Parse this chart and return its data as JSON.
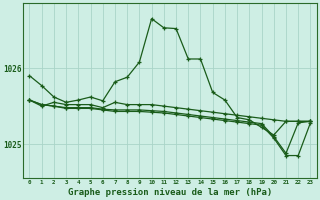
{
  "title": "Graphe pression niveau de la mer (hPa)",
  "background_color": "#ceeee4",
  "grid_color": "#aad4c8",
  "line_color": "#1a5c1a",
  "xlim": [
    -0.5,
    23.5
  ],
  "ylim": [
    1024.55,
    1026.85
  ],
  "yticks": [
    1025,
    1026
  ],
  "linewidth": 0.9,
  "markersize": 3.5,
  "xlabel_fontsize": 6.5,
  "xtick_fontsize": 4.2,
  "ytick_fontsize": 5.5,
  "main_y": [
    1025.9,
    1025.77,
    1025.62,
    1025.55,
    1025.58,
    1025.62,
    1025.57,
    1025.82,
    1025.88,
    1026.08,
    1026.65,
    1026.53,
    1026.52,
    1026.12,
    1026.12,
    1025.68,
    1025.58,
    1025.35,
    1025.32,
    1025.22,
    1025.12,
    1025.3,
    1025.3,
    1025.3
  ],
  "line2_y": [
    1025.58,
    1025.5,
    1025.55,
    1025.52,
    1025.52,
    1025.52,
    1025.48,
    1025.55,
    1025.52,
    1025.52,
    1025.52,
    1025.5,
    1025.48,
    1025.46,
    1025.44,
    1025.42,
    1025.4,
    1025.38,
    1025.36,
    1025.34,
    1025.32,
    1025.3,
    1025.3,
    1025.3
  ],
  "line3_y": [
    1025.58,
    1025.52,
    1025.5,
    1025.48,
    1025.48,
    1025.48,
    1025.46,
    1025.45,
    1025.45,
    1025.45,
    1025.44,
    1025.43,
    1025.41,
    1025.39,
    1025.37,
    1025.35,
    1025.33,
    1025.31,
    1025.29,
    1025.27,
    1025.1,
    1024.88,
    1025.28,
    1025.3
  ],
  "line4_y": [
    1025.58,
    1025.52,
    1025.5,
    1025.47,
    1025.47,
    1025.47,
    1025.45,
    1025.43,
    1025.43,
    1025.43,
    1025.42,
    1025.41,
    1025.39,
    1025.37,
    1025.35,
    1025.33,
    1025.31,
    1025.29,
    1025.27,
    1025.25,
    1025.08,
    1024.85,
    1024.85,
    1025.28
  ]
}
